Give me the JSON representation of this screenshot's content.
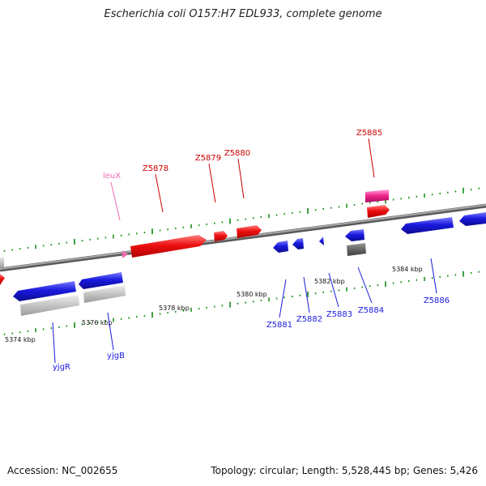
{
  "title": "Escherichia coli O157:H7 EDL933, complete genome",
  "footer": {
    "accession": "Accession: NC_002655",
    "topology": "Topology: circular; Length: 5,528,445 bp; Genes: 5,426"
  },
  "colors": {
    "forward_gene": "#ee1111",
    "reverse_gene": "#1a1adf",
    "pseudo_gene": "#bbbbbb",
    "dark_gene": "#666666",
    "trna": "#f06ab0",
    "rrna": "#ee2288",
    "backbone": "#888888",
    "tick": "#118811"
  },
  "ticks": [
    "5374 kbp",
    "5376 kbp",
    "5378 kbp",
    "5380 kbp",
    "5382 kbp",
    "5384 kbp"
  ],
  "gene_labels": [
    "yjgR",
    "yjgB",
    "leuX",
    "Z5878",
    "Z5879",
    "Z5880",
    "Z5881",
    "Z5882",
    "Z5883",
    "Z5884",
    "Z5885",
    "Z5886"
  ]
}
